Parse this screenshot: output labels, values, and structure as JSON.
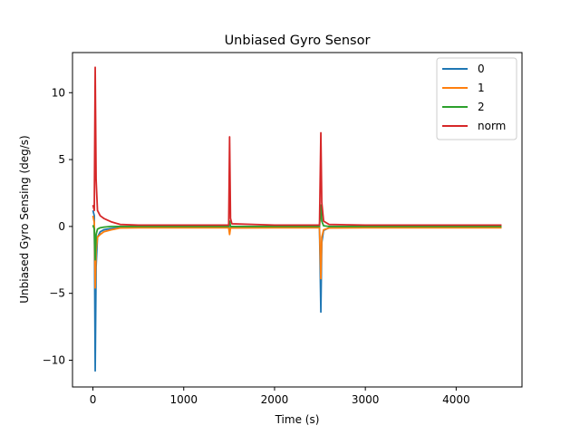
{
  "chart_data": {
    "type": "line",
    "title": "Unbiased Gyro Sensor",
    "xlabel": "Time (s)",
    "ylabel": "Unbiased Gyro Sensing (deg/s)",
    "xlim": [
      -225,
      4725
    ],
    "ylim": [
      -12.0,
      13.0
    ],
    "xticks": [
      0,
      1000,
      2000,
      3000,
      4000
    ],
    "xtick_labels": [
      "0",
      "1000",
      "2000",
      "3000",
      "4000"
    ],
    "yticks": [
      -10,
      -5,
      0,
      5,
      10
    ],
    "ytick_labels": [
      "−10",
      "−5",
      "0",
      "5",
      "10"
    ],
    "grid": false,
    "legend_position": "top-right",
    "series": [
      {
        "name": "0",
        "color": "#1f77b4",
        "points": [
          [
            0,
            1.2
          ],
          [
            15,
            0.8
          ],
          [
            25,
            -10.8
          ],
          [
            35,
            -3.0
          ],
          [
            50,
            -0.8
          ],
          [
            80,
            -0.4
          ],
          [
            120,
            -0.25
          ],
          [
            200,
            -0.15
          ],
          [
            300,
            -0.08
          ],
          [
            500,
            -0.05
          ],
          [
            1000,
            -0.05
          ],
          [
            1495,
            -0.05
          ],
          [
            1505,
            -0.3
          ],
          [
            1515,
            -0.05
          ],
          [
            2000,
            -0.05
          ],
          [
            2495,
            -0.05
          ],
          [
            2510,
            -6.4
          ],
          [
            2520,
            -1.2
          ],
          [
            2540,
            -0.3
          ],
          [
            2600,
            -0.1
          ],
          [
            3000,
            -0.06
          ],
          [
            4000,
            -0.06
          ],
          [
            4500,
            -0.06
          ]
        ]
      },
      {
        "name": "1",
        "color": "#ff7f0e",
        "points": [
          [
            0,
            0.8
          ],
          [
            15,
            0.3
          ],
          [
            25,
            -4.6
          ],
          [
            35,
            -1.8
          ],
          [
            50,
            -0.8
          ],
          [
            80,
            -0.6
          ],
          [
            120,
            -0.4
          ],
          [
            200,
            -0.25
          ],
          [
            300,
            -0.12
          ],
          [
            500,
            -0.1
          ],
          [
            1000,
            -0.1
          ],
          [
            1495,
            -0.1
          ],
          [
            1505,
            -0.6
          ],
          [
            1515,
            -0.12
          ],
          [
            2000,
            -0.1
          ],
          [
            2495,
            -0.1
          ],
          [
            2510,
            -3.9
          ],
          [
            2520,
            -0.8
          ],
          [
            2540,
            -0.25
          ],
          [
            2600,
            -0.12
          ],
          [
            3000,
            -0.1
          ],
          [
            4000,
            -0.1
          ],
          [
            4500,
            -0.1
          ]
        ]
      },
      {
        "name": "2",
        "color": "#2ca02c",
        "points": [
          [
            0,
            0.1
          ],
          [
            15,
            -0.2
          ],
          [
            25,
            -2.5
          ],
          [
            35,
            -0.6
          ],
          [
            50,
            -0.2
          ],
          [
            80,
            -0.1
          ],
          [
            120,
            -0.05
          ],
          [
            200,
            0.0
          ],
          [
            300,
            0.0
          ],
          [
            500,
            0.0
          ],
          [
            1000,
            0.0
          ],
          [
            1495,
            0.0
          ],
          [
            1505,
            0.4
          ],
          [
            1515,
            0.0
          ],
          [
            2000,
            0.0
          ],
          [
            2495,
            0.0
          ],
          [
            2510,
            1.6
          ],
          [
            2520,
            0.4
          ],
          [
            2540,
            0.05
          ],
          [
            2600,
            0.0
          ],
          [
            3000,
            0.0
          ],
          [
            4000,
            0.0
          ],
          [
            4500,
            0.0
          ]
        ]
      },
      {
        "name": "norm",
        "color": "#d62728",
        "points": [
          [
            0,
            1.6
          ],
          [
            15,
            1.2
          ],
          [
            25,
            11.9
          ],
          [
            35,
            3.5
          ],
          [
            50,
            1.2
          ],
          [
            80,
            0.8
          ],
          [
            120,
            0.6
          ],
          [
            200,
            0.35
          ],
          [
            300,
            0.15
          ],
          [
            500,
            0.1
          ],
          [
            1000,
            0.1
          ],
          [
            1495,
            0.1
          ],
          [
            1505,
            6.7
          ],
          [
            1515,
            0.6
          ],
          [
            1530,
            0.2
          ],
          [
            2000,
            0.1
          ],
          [
            2495,
            0.1
          ],
          [
            2510,
            7.0
          ],
          [
            2520,
            1.8
          ],
          [
            2540,
            0.4
          ],
          [
            2600,
            0.15
          ],
          [
            3000,
            0.1
          ],
          [
            4000,
            0.1
          ],
          [
            4500,
            0.1
          ]
        ]
      }
    ]
  }
}
